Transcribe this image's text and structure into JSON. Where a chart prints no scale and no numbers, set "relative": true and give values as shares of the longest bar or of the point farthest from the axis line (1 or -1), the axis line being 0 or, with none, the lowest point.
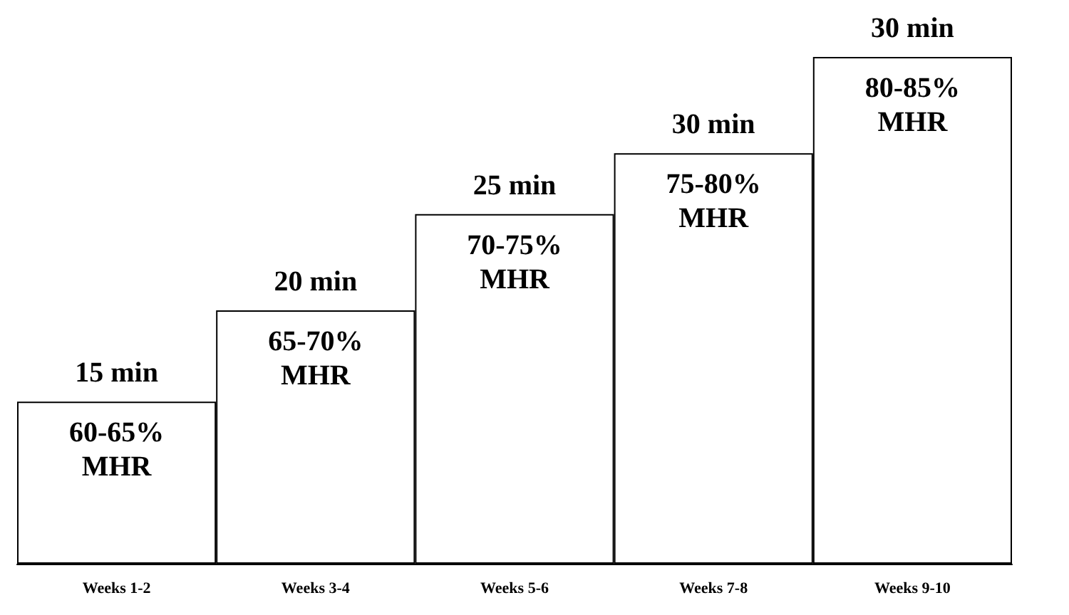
{
  "chart_data": {
    "type": "bar",
    "relative": true,
    "categories": [
      "Weeks 1-2",
      "Weeks 3-4",
      "Weeks 5-6",
      "Weeks 7-8",
      "Weeks 9-10"
    ],
    "values": [
      0.32,
      0.5,
      0.69,
      0.81,
      1
    ],
    "color": "#ffffff",
    "annotations": [
      "15 min",
      "20 min",
      "25 min",
      "30 min",
      "30 min",
      "60-65%\nMHR",
      "65-70%\nMHR",
      "70-75%\nMHR",
      "75-80%\nMHR",
      "80-85%\nMHR"
    ]
  }
}
